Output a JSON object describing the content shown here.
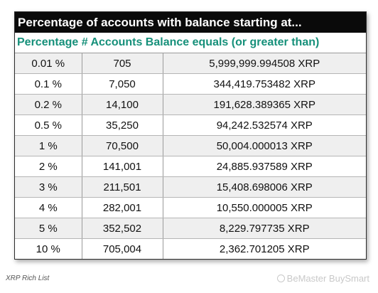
{
  "table": {
    "title": "Percentage of accounts with balance starting at...",
    "header": "Percentage # Accounts Balance equals (or greater than)",
    "rows": [
      {
        "percentage": "0.01 %",
        "accounts": "705",
        "balance": "5,999,999.994508 XRP"
      },
      {
        "percentage": "0.1 %",
        "accounts": "7,050",
        "balance": "344,419.753482 XRP"
      },
      {
        "percentage": "0.2 %",
        "accounts": "14,100",
        "balance": "191,628.389365 XRP"
      },
      {
        "percentage": "0.5 %",
        "accounts": "35,250",
        "balance": "94,242.532574 XRP"
      },
      {
        "percentage": "1 %",
        "accounts": "70,500",
        "balance": "50,004.000013 XRP"
      },
      {
        "percentage": "2 %",
        "accounts": "141,001",
        "balance": "24,885.937589 XRP"
      },
      {
        "percentage": "3 %",
        "accounts": "211,501",
        "balance": "15,408.698006 XRP"
      },
      {
        "percentage": "4 %",
        "accounts": "282,001",
        "balance": "10,550.000005 XRP"
      },
      {
        "percentage": "5 %",
        "accounts": "352,502",
        "balance": "8,229.797735 XRP"
      },
      {
        "percentage": "10 %",
        "accounts": "705,004",
        "balance": "2,362.701205 XRP"
      }
    ]
  },
  "footer": {
    "source": "XRP Rich List",
    "watermark": "BeMaster BuySmart"
  },
  "colors": {
    "title_background": "#0a0a0a",
    "header_text": "#16907a",
    "row_alternate": "#efefef"
  }
}
